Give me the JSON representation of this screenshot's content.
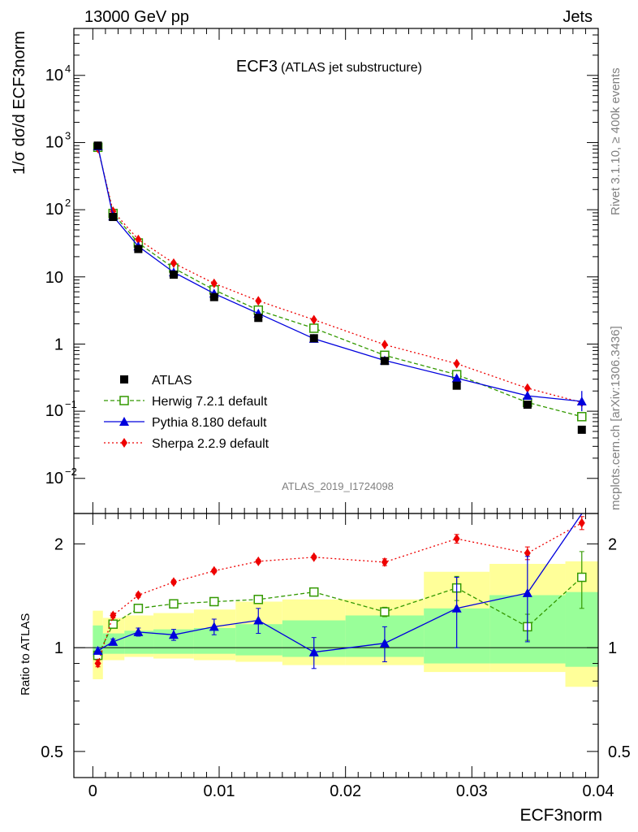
{
  "header": {
    "left": "13000 GeV pp",
    "right": "Jets"
  },
  "title_main": "ECF3",
  "title_sub": "(ATLAS jet substructure)",
  "analysis_id": "ATLAS_2019_I1724098",
  "side_text_top": "Rivet 3.1.10, ≥ 400k events",
  "side_text_bottom": "mcplots.cern.ch [arXiv:1306.3436]",
  "y_label_top": "1/σ dσ/d ECF3norm",
  "x_label": "ECF3norm",
  "y_label_bottom": "Ratio to ATLAS",
  "colors": {
    "ATLAS": "#000000",
    "Herwig": "#339900",
    "Pythia": "#0000dd",
    "Sherpa": "#ee0000",
    "band_inner": "#99ff99",
    "band_outer": "#ffff99"
  },
  "chart_data": [
    {
      "type": "line",
      "panel": "main",
      "yscale": "log",
      "xlim": [
        -0.0015,
        0.04
      ],
      "ylim": [
        0.003,
        50000
      ],
      "y_ticks": [
        "10^-2",
        "10^-1",
        "1",
        "10",
        "10^2",
        "10^3",
        "10^4"
      ],
      "legend_position": "lower-left",
      "x": [
        0.0004,
        0.0016,
        0.0036,
        0.0064,
        0.0096,
        0.0131,
        0.0175,
        0.0231,
        0.0288,
        0.0344,
        0.0387
      ],
      "x_bin_edges": [
        0.0,
        0.0008,
        0.0025,
        0.0048,
        0.008,
        0.0113,
        0.015,
        0.02,
        0.0262,
        0.0314,
        0.0374,
        0.04
      ],
      "series": [
        {
          "name": "ATLAS",
          "style": "marker-square",
          "values": [
            900,
            78,
            26,
            10.8,
            5.0,
            2.45,
            1.22,
            0.56,
            0.24,
            0.125,
            0.053
          ]
        },
        {
          "name": "Herwig 7.2.1 default",
          "style": "dashed-open-square",
          "values": [
            850,
            88,
            32,
            13.5,
            6.4,
            3.2,
            1.72,
            0.68,
            0.35,
            0.135,
            0.083
          ]
        },
        {
          "name": "Pythia 8.180 default",
          "style": "solid-triangle",
          "values": [
            880,
            80,
            28.5,
            11.7,
            5.65,
            2.85,
            1.2,
            0.57,
            0.31,
            0.17,
            0.14
          ]
        },
        {
          "name": "Sherpa 2.2.9 default",
          "style": "dotted-diamond",
          "values": [
            820,
            95,
            36,
            16,
            8.0,
            4.4,
            2.3,
            0.98,
            0.51,
            0.22,
            0.135
          ]
        }
      ]
    },
    {
      "type": "line",
      "panel": "ratio",
      "yscale": "log",
      "ylim": [
        0.42,
        2.45
      ],
      "y_ticks": [
        "0.5",
        "1",
        "2"
      ],
      "x_ticks": [
        "0",
        "0.01",
        "0.02",
        "0.03",
        "0.04"
      ],
      "x": [
        0.0004,
        0.0016,
        0.0036,
        0.0064,
        0.0096,
        0.0131,
        0.0175,
        0.0231,
        0.0288,
        0.0344,
        0.0387
      ],
      "band_inner": [
        [
          0.94,
          1.16
        ],
        [
          0.96,
          1.1
        ],
        [
          0.96,
          1.12
        ],
        [
          0.96,
          1.13
        ],
        [
          0.96,
          1.14
        ],
        [
          0.95,
          1.17
        ],
        [
          0.94,
          1.2
        ],
        [
          0.94,
          1.24
        ],
        [
          0.9,
          1.3
        ],
        [
          0.9,
          1.42
        ],
        [
          0.88,
          1.45
        ]
      ],
      "band_outer": [
        [
          0.81,
          1.28
        ],
        [
          0.92,
          1.22
        ],
        [
          0.94,
          1.24
        ],
        [
          0.93,
          1.26
        ],
        [
          0.92,
          1.29
        ],
        [
          0.91,
          1.36
        ],
        [
          0.89,
          1.38
        ],
        [
          0.89,
          1.38
        ],
        [
          0.85,
          1.66
        ],
        [
          0.85,
          1.75
        ],
        [
          0.77,
          1.78
        ]
      ],
      "series": [
        {
          "name": "Herwig 7.2.1 default",
          "values": [
            0.95,
            1.17,
            1.3,
            1.34,
            1.36,
            1.38,
            1.45,
            1.27,
            1.49,
            1.15,
            1.6
          ],
          "err": [
            0.02,
            0.02,
            0.02,
            0.02,
            0.02,
            0.02,
            0.02,
            0.04,
            0.12,
            0.1,
            0.3
          ]
        },
        {
          "name": "Pythia 8.180 default",
          "values": [
            0.98,
            1.04,
            1.11,
            1.09,
            1.15,
            1.2,
            0.97,
            1.03,
            1.3,
            1.44,
            2.55
          ],
          "err": [
            0.02,
            0.02,
            0.03,
            0.04,
            0.06,
            0.1,
            0.1,
            0.12,
            0.3,
            0.4,
            0.0
          ]
        },
        {
          "name": "Sherpa 2.2.9 default",
          "values": [
            0.9,
            1.24,
            1.42,
            1.55,
            1.67,
            1.78,
            1.83,
            1.77,
            2.07,
            1.88,
            2.3
          ],
          "err": [
            0.02,
            0.02,
            0.02,
            0.02,
            0.02,
            0.02,
            0.02,
            0.04,
            0.06,
            0.08,
            0.1
          ]
        }
      ]
    }
  ]
}
